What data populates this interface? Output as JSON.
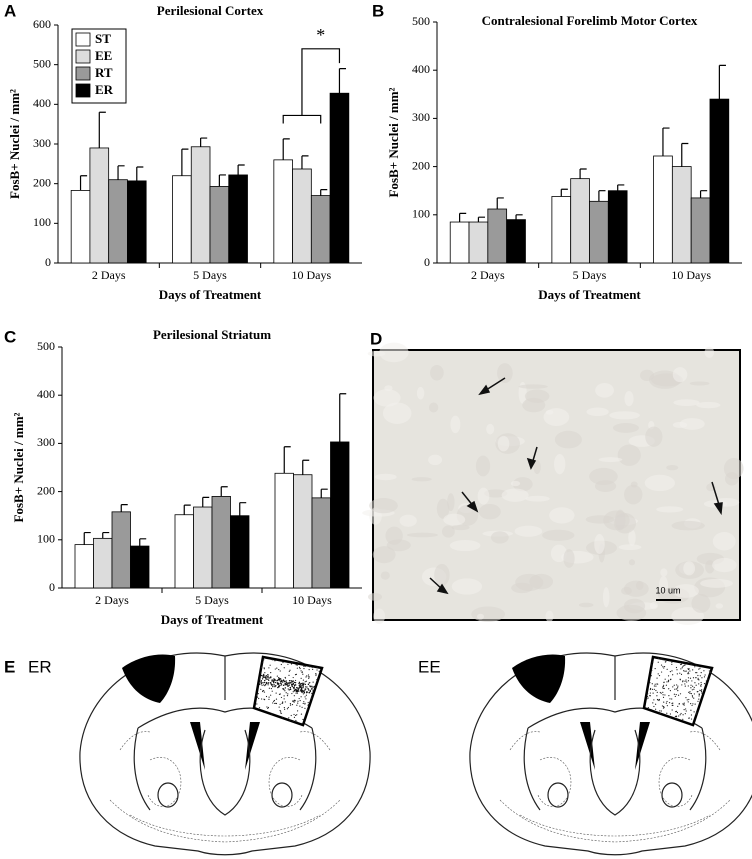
{
  "chart_data": [
    {
      "type": "bar",
      "panel": "A",
      "title": "Perilesional Cortex",
      "x_label": "Days of Treatment",
      "y_label": "FosB+ Nuclei / mm²",
      "categories": [
        "2 Days",
        "5 Days",
        "10 Days"
      ],
      "ylim": [
        0,
        600
      ],
      "yticks": [
        0,
        100,
        200,
        300,
        400,
        500,
        600
      ],
      "legend": "top-left",
      "annotation": "*",
      "series": [
        {
          "name": "ST",
          "color": "#ffffff",
          "values": [
            183,
            220,
            260
          ],
          "errors": [
            37,
            67,
            53
          ]
        },
        {
          "name": "EE",
          "color": "#dcdcdc",
          "values": [
            290,
            293,
            237
          ],
          "errors": [
            90,
            22,
            33
          ]
        },
        {
          "name": "RT",
          "color": "#9a9a9a",
          "values": [
            210,
            193,
            170
          ],
          "errors": [
            35,
            29,
            15
          ]
        },
        {
          "name": "ER",
          "color": "#000000",
          "values": [
            207,
            222,
            428
          ],
          "errors": [
            35,
            25,
            62
          ]
        }
      ]
    },
    {
      "type": "bar",
      "panel": "B",
      "title": "Contralesional Forelimb Motor Cortex",
      "x_label": "Days of Treatment",
      "y_label": "FosB+ Nuclei / mm²",
      "categories": [
        "2 Days",
        "5 Days",
        "10 Days"
      ],
      "ylim": [
        0,
        500
      ],
      "yticks": [
        0,
        100,
        200,
        300,
        400,
        500
      ],
      "series": [
        {
          "color": "#ffffff",
          "values": [
            85,
            138,
            222
          ],
          "errors": [
            18,
            15,
            58
          ]
        },
        {
          "color": "#dcdcdc",
          "values": [
            85,
            175,
            200
          ],
          "errors": [
            10,
            20,
            48
          ]
        },
        {
          "color": "#9a9a9a",
          "values": [
            112,
            128,
            135
          ],
          "errors": [
            23,
            22,
            15
          ]
        },
        {
          "color": "#000000",
          "values": [
            90,
            150,
            340
          ],
          "errors": [
            10,
            12,
            70
          ]
        }
      ]
    },
    {
      "type": "bar",
      "panel": "C",
      "title": "Perilesional Striatum",
      "x_label": "Days of Treatment",
      "y_label": "FosB+ Nuclei / mm²",
      "categories": [
        "2 Days",
        "5 Days",
        "10 Days"
      ],
      "ylim": [
        0,
        500
      ],
      "yticks": [
        0,
        100,
        200,
        300,
        400,
        500
      ],
      "series": [
        {
          "color": "#ffffff",
          "values": [
            90,
            152,
            238
          ],
          "errors": [
            25,
            20,
            55
          ]
        },
        {
          "color": "#dcdcdc",
          "values": [
            103,
            168,
            235
          ],
          "errors": [
            12,
            20,
            30
          ]
        },
        {
          "color": "#9a9a9a",
          "values": [
            158,
            190,
            187
          ],
          "errors": [
            15,
            20,
            18
          ]
        },
        {
          "color": "#000000",
          "values": [
            87,
            150,
            303
          ],
          "errors": [
            15,
            27,
            100
          ]
        }
      ]
    }
  ],
  "image_panel": {
    "panel": "D",
    "scale_bar": "10 um"
  },
  "diagram_panel": {
    "panel": "E",
    "labels": [
      "ER",
      "EE"
    ]
  }
}
